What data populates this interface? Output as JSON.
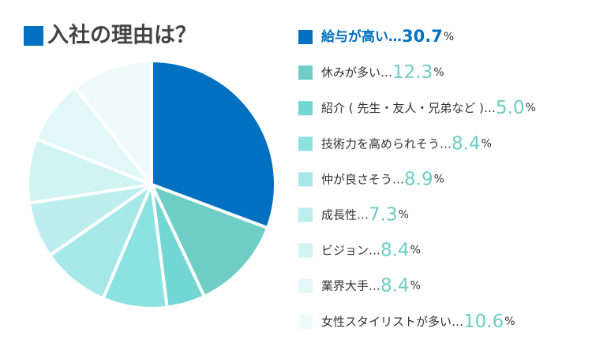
{
  "chart_data": {
    "type": "pie",
    "title": "入社の理由は？",
    "categories": [
      "給与が高い",
      "休みが多い",
      "紹介 ( 先生・友人・兄弟など )",
      "技術力を高められそう",
      "仲が良さそう",
      "成長性",
      "ビジョン",
      "業界大手",
      "女性スタイリストが多い"
    ],
    "values": [
      30.7,
      12.3,
      5.0,
      8.4,
      8.9,
      7.3,
      8.4,
      8.4,
      10.6
    ],
    "value_labels": [
      "30.7",
      "12.3",
      "5.0",
      "8.4",
      "8.9",
      "7.3",
      "8.4",
      "8.4",
      "10.6"
    ],
    "separator": "…",
    "unit": "%",
    "colors": [
      "#0070c0",
      "#6ecdc4",
      "#72d6d2",
      "#8ce1e1",
      "#a6e8e8",
      "#bdeeee",
      "#d0f3f3",
      "#e2f7f7",
      "#effbfb"
    ]
  }
}
